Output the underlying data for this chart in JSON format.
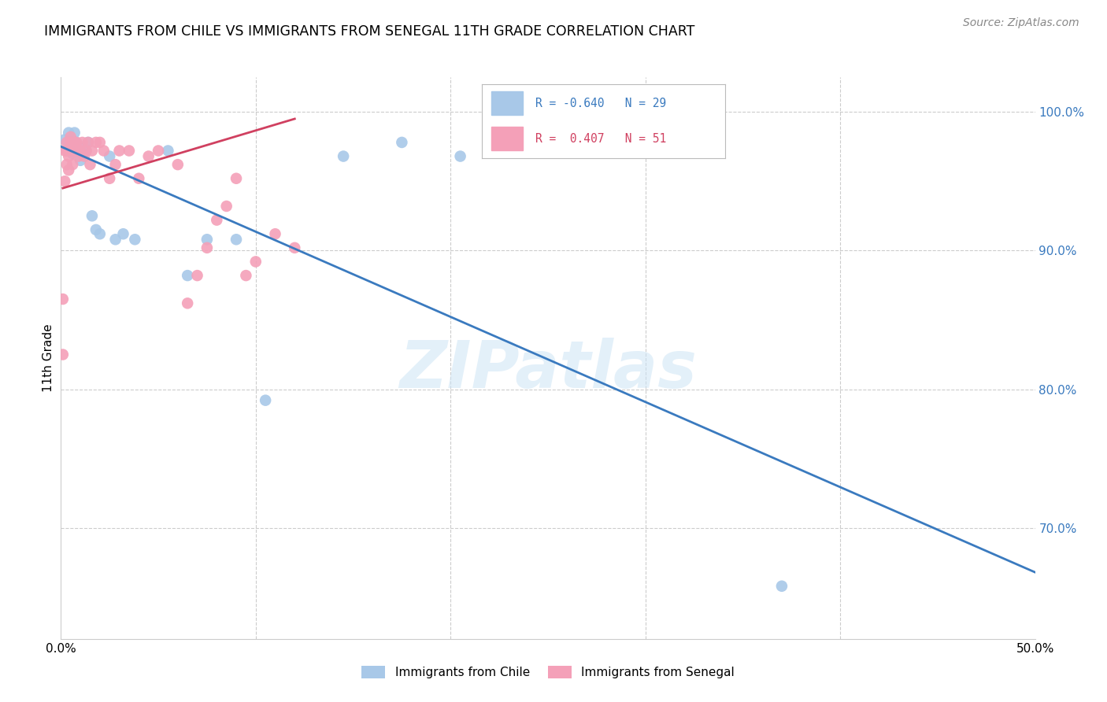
{
  "title": "IMMIGRANTS FROM CHILE VS IMMIGRANTS FROM SENEGAL 11TH GRADE CORRELATION CHART",
  "source": "Source: ZipAtlas.com",
  "ylabel": "11th Grade",
  "xlim": [
    0.0,
    0.5
  ],
  "ylim": [
    0.62,
    1.025
  ],
  "yticks_right": [
    0.7,
    0.8,
    0.9,
    1.0
  ],
  "ytick_labels_right": [
    "70.0%",
    "80.0%",
    "90.0%",
    "100.0%"
  ],
  "xticks": [
    0.0,
    0.1,
    0.2,
    0.3,
    0.4,
    0.5
  ],
  "xtick_labels": [
    "0.0%",
    "",
    "",
    "",
    "",
    "50.0%"
  ],
  "legend_R_blue": "-0.640",
  "legend_N_blue": "29",
  "legend_R_pink": "0.407",
  "legend_N_pink": "51",
  "blue_color": "#a8c8e8",
  "pink_color": "#f4a0b8",
  "trendline_blue": "#3a7abf",
  "trendline_pink": "#d04060",
  "watermark": "ZIPatlas",
  "blue_trend_x0": 0.0,
  "blue_trend_y0": 0.975,
  "blue_trend_x1": 0.5,
  "blue_trend_y1": 0.668,
  "pink_trend_x0": 0.001,
  "pink_trend_y0": 0.945,
  "pink_trend_x1": 0.12,
  "pink_trend_y1": 0.995,
  "chile_points_x": [
    0.002,
    0.004,
    0.005,
    0.006,
    0.007,
    0.008,
    0.009,
    0.01,
    0.011,
    0.013,
    0.014,
    0.016,
    0.018,
    0.02,
    0.025,
    0.028,
    0.032,
    0.038,
    0.055,
    0.065,
    0.075,
    0.09,
    0.105,
    0.145,
    0.175,
    0.205,
    0.295,
    0.37
  ],
  "chile_points_y": [
    0.98,
    0.985,
    0.975,
    0.97,
    0.985,
    0.978,
    0.975,
    0.965,
    0.97,
    0.972,
    0.978,
    0.925,
    0.915,
    0.912,
    0.968,
    0.908,
    0.912,
    0.908,
    0.972,
    0.882,
    0.908,
    0.908,
    0.792,
    0.968,
    0.978,
    0.968,
    1.002,
    0.658
  ],
  "senegal_points_x": [
    0.001,
    0.001,
    0.002,
    0.002,
    0.003,
    0.003,
    0.003,
    0.004,
    0.004,
    0.005,
    0.005,
    0.006,
    0.006,
    0.007,
    0.007,
    0.008,
    0.008,
    0.009,
    0.01,
    0.011,
    0.012,
    0.013,
    0.014,
    0.015,
    0.016,
    0.018,
    0.02,
    0.022,
    0.025,
    0.028,
    0.03,
    0.035,
    0.04,
    0.045,
    0.05,
    0.06,
    0.065,
    0.07,
    0.075,
    0.08,
    0.085,
    0.09,
    0.095,
    0.1,
    0.11,
    0.12
  ],
  "senegal_points_y": [
    0.825,
    0.865,
    0.95,
    0.972,
    0.972,
    0.978,
    0.962,
    0.968,
    0.958,
    0.978,
    0.982,
    0.962,
    0.972,
    0.972,
    0.978,
    0.972,
    0.978,
    0.968,
    0.972,
    0.978,
    0.968,
    0.972,
    0.978,
    0.962,
    0.972,
    0.978,
    0.978,
    0.972,
    0.952,
    0.962,
    0.972,
    0.972,
    0.952,
    0.968,
    0.972,
    0.962,
    0.862,
    0.882,
    0.902,
    0.922,
    0.932,
    0.952,
    0.882,
    0.892,
    0.912,
    0.902
  ]
}
